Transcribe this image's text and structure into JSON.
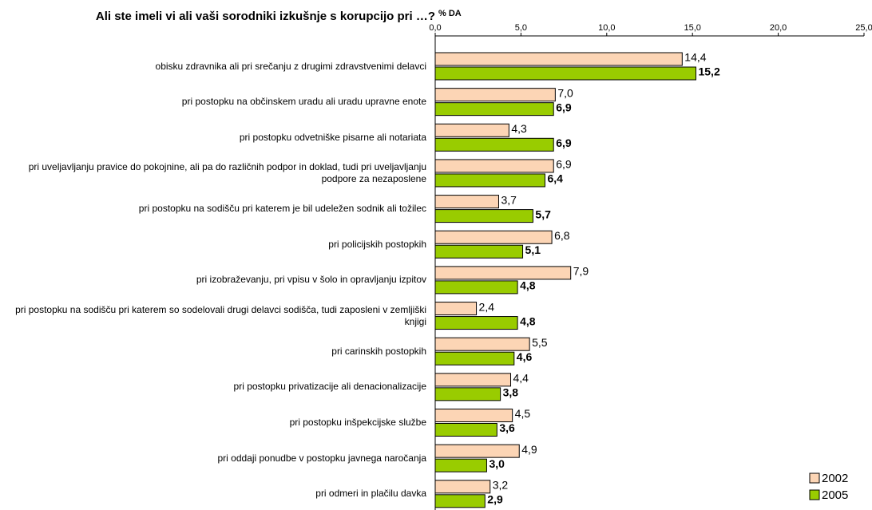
{
  "chart_data": {
    "type": "bar",
    "orientation": "horizontal",
    "title": "Ali ste imeli vi ali vaši sorodniki izkušnje s korupcijo pri …?",
    "axis_label": "% DA",
    "categories": [
      "obisku zdravnika ali pri srečanju z drugimi zdravstvenimi delavci",
      "pri postopku na občinskem uradu ali uradu upravne enote",
      "pri postopku odvetniške pisarne ali notariata",
      "pri uveljavljanju pravice do pokojnine, ali pa do različnih podpor in doklad, tudi pri uveljavljanju podpore za nezaposlene",
      "pri postopku na sodišču pri katerem je bil udeležen sodnik ali tožilec",
      "pri policijskih postopkih",
      "pri izobraževanju, pri vpisu v šolo in opravljanju izpitov",
      "pri postopku na sodišču pri katerem so sodelovali drugi delavci sodišča, tudi zaposleni v zemljiški knjigi",
      "pri carinskih postopkih",
      "pri postopku privatizacije ali denacionalizacije",
      "pri postopku inšpekcijske službe",
      "pri oddaji ponudbe v postopku javnega naročanja",
      "pri odmeri in plačilu davka"
    ],
    "series": [
      {
        "name": "2002",
        "color": "#fcd5b5",
        "bold_labels": false,
        "values": [
          14.4,
          7.0,
          4.3,
          6.9,
          3.7,
          6.8,
          7.9,
          2.4,
          5.5,
          4.4,
          4.5,
          4.9,
          3.2
        ],
        "value_labels": [
          "14,4",
          "7,0",
          "4,3",
          "6,9",
          "3,7",
          "6,8",
          "7,9",
          "2,4",
          "5,5",
          "4,4",
          "4,5",
          "4,9",
          "3,2"
        ]
      },
      {
        "name": "2005",
        "color": "#99cc00",
        "bold_labels": true,
        "values": [
          15.2,
          6.9,
          6.9,
          6.4,
          5.7,
          5.1,
          4.8,
          4.8,
          4.6,
          3.8,
          3.6,
          3.0,
          2.9
        ],
        "value_labels": [
          "15,2",
          "6,9",
          "6,9",
          "6,4",
          "5,7",
          "5,1",
          "4,8",
          "4,8",
          "4,6",
          "3,8",
          "3,6",
          "3,0",
          "2,9"
        ]
      }
    ],
    "xlim": [
      0,
      25
    ],
    "xticks": [
      {
        "value": 0,
        "label": "0,0"
      },
      {
        "value": 5,
        "label": "5,0"
      },
      {
        "value": 10,
        "label": "10,0"
      },
      {
        "value": 15,
        "label": "15,0"
      },
      {
        "value": 20,
        "label": "20,0"
      },
      {
        "value": 25,
        "label": "25,0"
      }
    ],
    "grid": false,
    "legend": "bottom-right"
  }
}
